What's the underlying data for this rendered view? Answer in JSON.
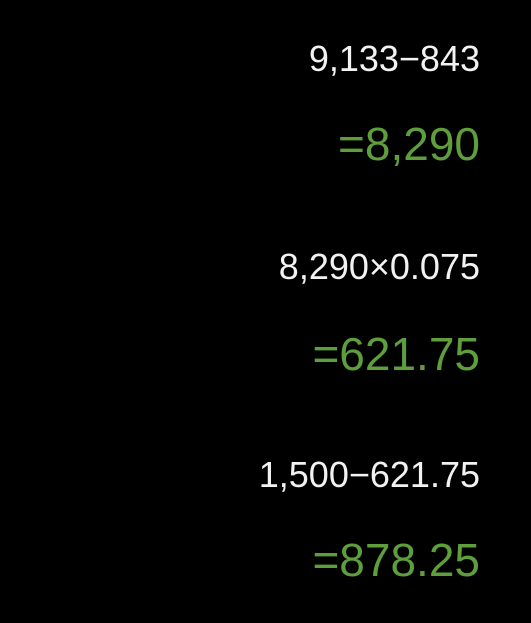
{
  "history": [
    {
      "expression": "9,133−843",
      "result": "=8,290"
    },
    {
      "expression": "8,290×0.075",
      "result": "=621.75"
    },
    {
      "expression": "1,500−621.75",
      "result": "=878.25"
    }
  ],
  "colors": {
    "background": "#000000",
    "expression_text": "#f2f2f2",
    "result_text": "#5f9e3c"
  }
}
